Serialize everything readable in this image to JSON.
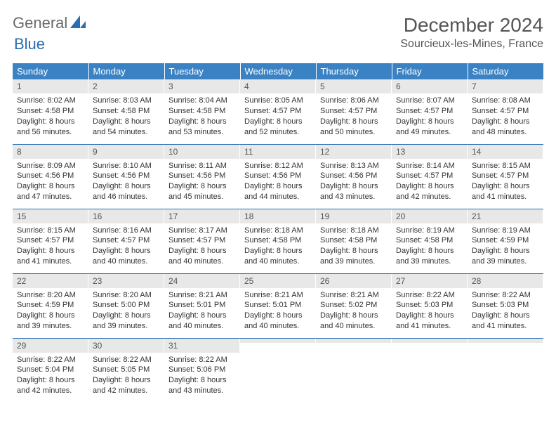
{
  "brand": {
    "part1": "General",
    "part2": "Blue"
  },
  "title": "December 2024",
  "location": "Sourcieux-les-Mines, France",
  "colors": {
    "header_bg": "#3b82c4",
    "header_text": "#ffffff",
    "daynum_bg": "#e8e8e8",
    "border": "#2a6db0",
    "brand_gray": "#6b6b6b",
    "brand_blue": "#2a6db0"
  },
  "weekdays": [
    "Sunday",
    "Monday",
    "Tuesday",
    "Wednesday",
    "Thursday",
    "Friday",
    "Saturday"
  ],
  "weeks": [
    [
      {
        "n": "1",
        "sr": "Sunrise: 8:02 AM",
        "ss": "Sunset: 4:58 PM",
        "d1": "Daylight: 8 hours",
        "d2": "and 56 minutes."
      },
      {
        "n": "2",
        "sr": "Sunrise: 8:03 AM",
        "ss": "Sunset: 4:58 PM",
        "d1": "Daylight: 8 hours",
        "d2": "and 54 minutes."
      },
      {
        "n": "3",
        "sr": "Sunrise: 8:04 AM",
        "ss": "Sunset: 4:58 PM",
        "d1": "Daylight: 8 hours",
        "d2": "and 53 minutes."
      },
      {
        "n": "4",
        "sr": "Sunrise: 8:05 AM",
        "ss": "Sunset: 4:57 PM",
        "d1": "Daylight: 8 hours",
        "d2": "and 52 minutes."
      },
      {
        "n": "5",
        "sr": "Sunrise: 8:06 AM",
        "ss": "Sunset: 4:57 PM",
        "d1": "Daylight: 8 hours",
        "d2": "and 50 minutes."
      },
      {
        "n": "6",
        "sr": "Sunrise: 8:07 AM",
        "ss": "Sunset: 4:57 PM",
        "d1": "Daylight: 8 hours",
        "d2": "and 49 minutes."
      },
      {
        "n": "7",
        "sr": "Sunrise: 8:08 AM",
        "ss": "Sunset: 4:57 PM",
        "d1": "Daylight: 8 hours",
        "d2": "and 48 minutes."
      }
    ],
    [
      {
        "n": "8",
        "sr": "Sunrise: 8:09 AM",
        "ss": "Sunset: 4:56 PM",
        "d1": "Daylight: 8 hours",
        "d2": "and 47 minutes."
      },
      {
        "n": "9",
        "sr": "Sunrise: 8:10 AM",
        "ss": "Sunset: 4:56 PM",
        "d1": "Daylight: 8 hours",
        "d2": "and 46 minutes."
      },
      {
        "n": "10",
        "sr": "Sunrise: 8:11 AM",
        "ss": "Sunset: 4:56 PM",
        "d1": "Daylight: 8 hours",
        "d2": "and 45 minutes."
      },
      {
        "n": "11",
        "sr": "Sunrise: 8:12 AM",
        "ss": "Sunset: 4:56 PM",
        "d1": "Daylight: 8 hours",
        "d2": "and 44 minutes."
      },
      {
        "n": "12",
        "sr": "Sunrise: 8:13 AM",
        "ss": "Sunset: 4:56 PM",
        "d1": "Daylight: 8 hours",
        "d2": "and 43 minutes."
      },
      {
        "n": "13",
        "sr": "Sunrise: 8:14 AM",
        "ss": "Sunset: 4:57 PM",
        "d1": "Daylight: 8 hours",
        "d2": "and 42 minutes."
      },
      {
        "n": "14",
        "sr": "Sunrise: 8:15 AM",
        "ss": "Sunset: 4:57 PM",
        "d1": "Daylight: 8 hours",
        "d2": "and 41 minutes."
      }
    ],
    [
      {
        "n": "15",
        "sr": "Sunrise: 8:15 AM",
        "ss": "Sunset: 4:57 PM",
        "d1": "Daylight: 8 hours",
        "d2": "and 41 minutes."
      },
      {
        "n": "16",
        "sr": "Sunrise: 8:16 AM",
        "ss": "Sunset: 4:57 PM",
        "d1": "Daylight: 8 hours",
        "d2": "and 40 minutes."
      },
      {
        "n": "17",
        "sr": "Sunrise: 8:17 AM",
        "ss": "Sunset: 4:57 PM",
        "d1": "Daylight: 8 hours",
        "d2": "and 40 minutes."
      },
      {
        "n": "18",
        "sr": "Sunrise: 8:18 AM",
        "ss": "Sunset: 4:58 PM",
        "d1": "Daylight: 8 hours",
        "d2": "and 40 minutes."
      },
      {
        "n": "19",
        "sr": "Sunrise: 8:18 AM",
        "ss": "Sunset: 4:58 PM",
        "d1": "Daylight: 8 hours",
        "d2": "and 39 minutes."
      },
      {
        "n": "20",
        "sr": "Sunrise: 8:19 AM",
        "ss": "Sunset: 4:58 PM",
        "d1": "Daylight: 8 hours",
        "d2": "and 39 minutes."
      },
      {
        "n": "21",
        "sr": "Sunrise: 8:19 AM",
        "ss": "Sunset: 4:59 PM",
        "d1": "Daylight: 8 hours",
        "d2": "and 39 minutes."
      }
    ],
    [
      {
        "n": "22",
        "sr": "Sunrise: 8:20 AM",
        "ss": "Sunset: 4:59 PM",
        "d1": "Daylight: 8 hours",
        "d2": "and 39 minutes."
      },
      {
        "n": "23",
        "sr": "Sunrise: 8:20 AM",
        "ss": "Sunset: 5:00 PM",
        "d1": "Daylight: 8 hours",
        "d2": "and 39 minutes."
      },
      {
        "n": "24",
        "sr": "Sunrise: 8:21 AM",
        "ss": "Sunset: 5:01 PM",
        "d1": "Daylight: 8 hours",
        "d2": "and 40 minutes."
      },
      {
        "n": "25",
        "sr": "Sunrise: 8:21 AM",
        "ss": "Sunset: 5:01 PM",
        "d1": "Daylight: 8 hours",
        "d2": "and 40 minutes."
      },
      {
        "n": "26",
        "sr": "Sunrise: 8:21 AM",
        "ss": "Sunset: 5:02 PM",
        "d1": "Daylight: 8 hours",
        "d2": "and 40 minutes."
      },
      {
        "n": "27",
        "sr": "Sunrise: 8:22 AM",
        "ss": "Sunset: 5:03 PM",
        "d1": "Daylight: 8 hours",
        "d2": "and 41 minutes."
      },
      {
        "n": "28",
        "sr": "Sunrise: 8:22 AM",
        "ss": "Sunset: 5:03 PM",
        "d1": "Daylight: 8 hours",
        "d2": "and 41 minutes."
      }
    ],
    [
      {
        "n": "29",
        "sr": "Sunrise: 8:22 AM",
        "ss": "Sunset: 5:04 PM",
        "d1": "Daylight: 8 hours",
        "d2": "and 42 minutes."
      },
      {
        "n": "30",
        "sr": "Sunrise: 8:22 AM",
        "ss": "Sunset: 5:05 PM",
        "d1": "Daylight: 8 hours",
        "d2": "and 42 minutes."
      },
      {
        "n": "31",
        "sr": "Sunrise: 8:22 AM",
        "ss": "Sunset: 5:06 PM",
        "d1": "Daylight: 8 hours",
        "d2": "and 43 minutes."
      },
      {
        "n": "",
        "sr": "",
        "ss": "",
        "d1": "",
        "d2": ""
      },
      {
        "n": "",
        "sr": "",
        "ss": "",
        "d1": "",
        "d2": ""
      },
      {
        "n": "",
        "sr": "",
        "ss": "",
        "d1": "",
        "d2": ""
      },
      {
        "n": "",
        "sr": "",
        "ss": "",
        "d1": "",
        "d2": ""
      }
    ]
  ]
}
